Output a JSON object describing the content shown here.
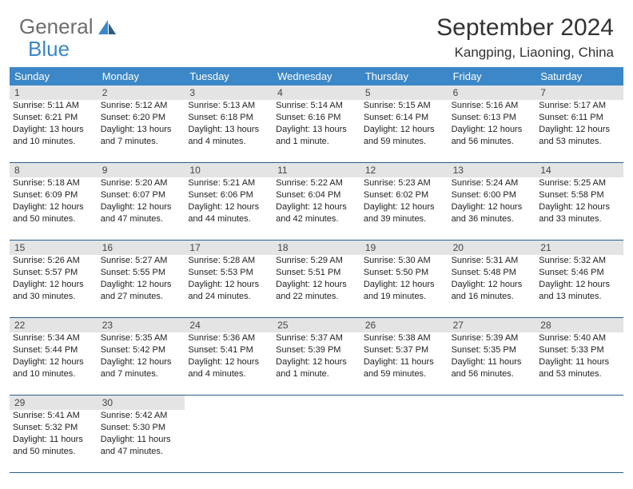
{
  "logo": {
    "text1": "General",
    "text2": "Blue"
  },
  "title": "September 2024",
  "location": "Kangping, Liaoning, China",
  "colors": {
    "header_bg": "#3b87c8",
    "header_text": "#ffffff",
    "daynum_bg": "#e4e4e4",
    "border": "#2a5d8a",
    "body_text": "#222222",
    "logo_gray": "#6d6d6d",
    "logo_blue": "#3b87c8"
  },
  "weekdays": [
    "Sunday",
    "Monday",
    "Tuesday",
    "Wednesday",
    "Thursday",
    "Friday",
    "Saturday"
  ],
  "days": [
    {
      "n": "1",
      "sunrise": "5:11 AM",
      "sunset": "6:21 PM",
      "daylight": "13 hours and 10 minutes."
    },
    {
      "n": "2",
      "sunrise": "5:12 AM",
      "sunset": "6:20 PM",
      "daylight": "13 hours and 7 minutes."
    },
    {
      "n": "3",
      "sunrise": "5:13 AM",
      "sunset": "6:18 PM",
      "daylight": "13 hours and 4 minutes."
    },
    {
      "n": "4",
      "sunrise": "5:14 AM",
      "sunset": "6:16 PM",
      "daylight": "13 hours and 1 minute."
    },
    {
      "n": "5",
      "sunrise": "5:15 AM",
      "sunset": "6:14 PM",
      "daylight": "12 hours and 59 minutes."
    },
    {
      "n": "6",
      "sunrise": "5:16 AM",
      "sunset": "6:13 PM",
      "daylight": "12 hours and 56 minutes."
    },
    {
      "n": "7",
      "sunrise": "5:17 AM",
      "sunset": "6:11 PM",
      "daylight": "12 hours and 53 minutes."
    },
    {
      "n": "8",
      "sunrise": "5:18 AM",
      "sunset": "6:09 PM",
      "daylight": "12 hours and 50 minutes."
    },
    {
      "n": "9",
      "sunrise": "5:20 AM",
      "sunset": "6:07 PM",
      "daylight": "12 hours and 47 minutes."
    },
    {
      "n": "10",
      "sunrise": "5:21 AM",
      "sunset": "6:06 PM",
      "daylight": "12 hours and 44 minutes."
    },
    {
      "n": "11",
      "sunrise": "5:22 AM",
      "sunset": "6:04 PM",
      "daylight": "12 hours and 42 minutes."
    },
    {
      "n": "12",
      "sunrise": "5:23 AM",
      "sunset": "6:02 PM",
      "daylight": "12 hours and 39 minutes."
    },
    {
      "n": "13",
      "sunrise": "5:24 AM",
      "sunset": "6:00 PM",
      "daylight": "12 hours and 36 minutes."
    },
    {
      "n": "14",
      "sunrise": "5:25 AM",
      "sunset": "5:58 PM",
      "daylight": "12 hours and 33 minutes."
    },
    {
      "n": "15",
      "sunrise": "5:26 AM",
      "sunset": "5:57 PM",
      "daylight": "12 hours and 30 minutes."
    },
    {
      "n": "16",
      "sunrise": "5:27 AM",
      "sunset": "5:55 PM",
      "daylight": "12 hours and 27 minutes."
    },
    {
      "n": "17",
      "sunrise": "5:28 AM",
      "sunset": "5:53 PM",
      "daylight": "12 hours and 24 minutes."
    },
    {
      "n": "18",
      "sunrise": "5:29 AM",
      "sunset": "5:51 PM",
      "daylight": "12 hours and 22 minutes."
    },
    {
      "n": "19",
      "sunrise": "5:30 AM",
      "sunset": "5:50 PM",
      "daylight": "12 hours and 19 minutes."
    },
    {
      "n": "20",
      "sunrise": "5:31 AM",
      "sunset": "5:48 PM",
      "daylight": "12 hours and 16 minutes."
    },
    {
      "n": "21",
      "sunrise": "5:32 AM",
      "sunset": "5:46 PM",
      "daylight": "12 hours and 13 minutes."
    },
    {
      "n": "22",
      "sunrise": "5:34 AM",
      "sunset": "5:44 PM",
      "daylight": "12 hours and 10 minutes."
    },
    {
      "n": "23",
      "sunrise": "5:35 AM",
      "sunset": "5:42 PM",
      "daylight": "12 hours and 7 minutes."
    },
    {
      "n": "24",
      "sunrise": "5:36 AM",
      "sunset": "5:41 PM",
      "daylight": "12 hours and 4 minutes."
    },
    {
      "n": "25",
      "sunrise": "5:37 AM",
      "sunset": "5:39 PM",
      "daylight": "12 hours and 1 minute."
    },
    {
      "n": "26",
      "sunrise": "5:38 AM",
      "sunset": "5:37 PM",
      "daylight": "11 hours and 59 minutes."
    },
    {
      "n": "27",
      "sunrise": "5:39 AM",
      "sunset": "5:35 PM",
      "daylight": "11 hours and 56 minutes."
    },
    {
      "n": "28",
      "sunrise": "5:40 AM",
      "sunset": "5:33 PM",
      "daylight": "11 hours and 53 minutes."
    },
    {
      "n": "29",
      "sunrise": "5:41 AM",
      "sunset": "5:32 PM",
      "daylight": "11 hours and 50 minutes."
    },
    {
      "n": "30",
      "sunrise": "5:42 AM",
      "sunset": "5:30 PM",
      "daylight": "11 hours and 47 minutes."
    }
  ],
  "labels": {
    "sunrise": "Sunrise:",
    "sunset": "Sunset:",
    "daylight": "Daylight:"
  }
}
